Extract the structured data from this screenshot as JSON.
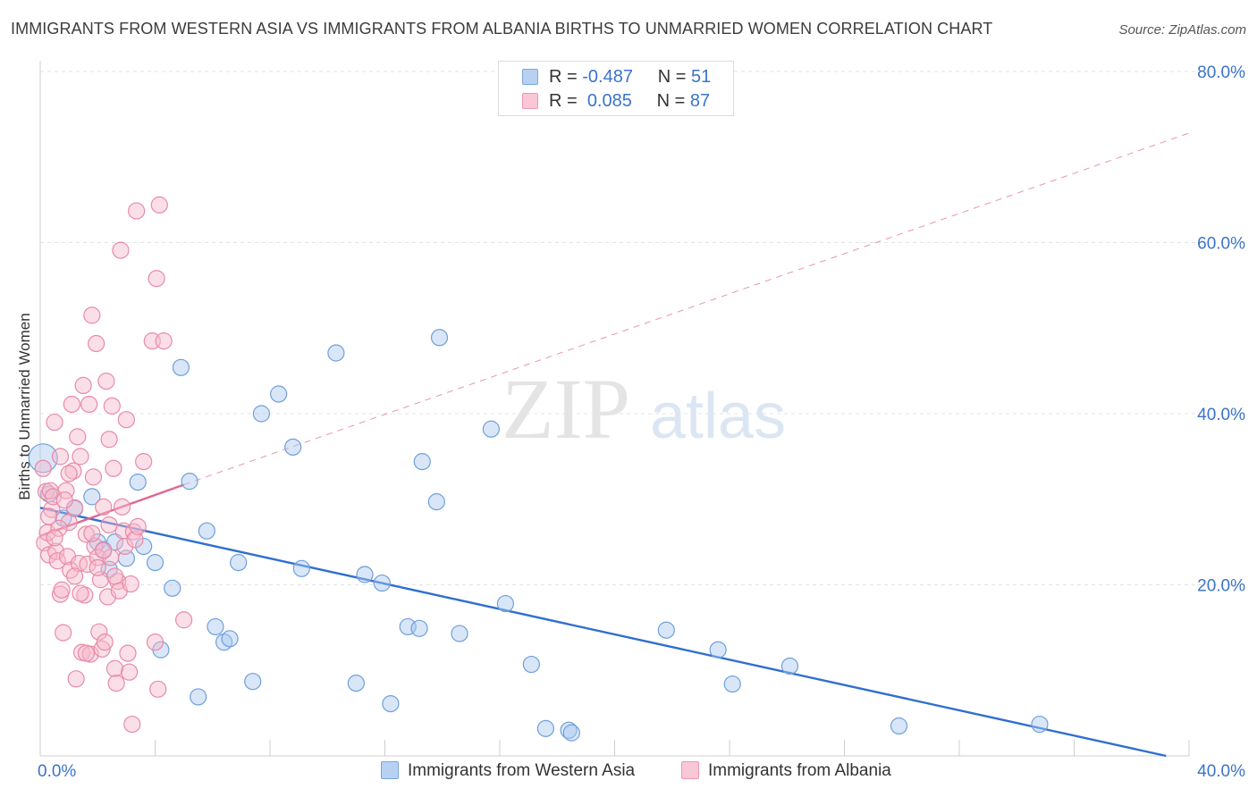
{
  "title": "IMMIGRANTS FROM WESTERN ASIA VS IMMIGRANTS FROM ALBANIA BIRTHS TO UNMARRIED WOMEN CORRELATION CHART",
  "source": "Source: ZipAtlas.com",
  "legend": {
    "series1": {
      "r_label": "R =",
      "r_value": "-0.487",
      "n_label": "N =",
      "n_value": "51"
    },
    "series2": {
      "r_label": "R =",
      "r_value": "0.085",
      "n_label": "N =",
      "n_value": "87"
    }
  },
  "colors": {
    "blue_fill": "#a9c8f0",
    "blue_stroke": "#6f9fdb",
    "blue_line": "#2f6fd0",
    "pink_fill": "#f6b8cb",
    "pink_stroke": "#e88aa6",
    "pink_line": "#e0668f",
    "grid": "#e3e3e3",
    "tick_label": "#3a74c9"
  },
  "chart_data": {
    "type": "scatter",
    "title": "IMMIGRANTS FROM WESTERN ASIA VS IMMIGRANTS FROM ALBANIA BIRTHS TO UNMARRIED WOMEN CORRELATION CHART",
    "xlabel": "",
    "ylabel": "Births to Unmarried Women",
    "xlim": [
      0,
      40
    ],
    "ylim": [
      0,
      80
    ],
    "x_tick_labels": [
      "0.0%",
      "40.0%"
    ],
    "y_ticks": [
      20,
      40,
      60,
      80
    ],
    "y_tick_labels": [
      "20.0%",
      "40.0%",
      "60.0%",
      "80.0%"
    ],
    "grid": true,
    "watermark": {
      "zip": "ZIP",
      "atlas": "atlas"
    },
    "series": [
      {
        "name": "Immigrants from Western Asia",
        "color": "blue",
        "points": [
          [
            0.1,
            34.8
          ],
          [
            0.3,
            30.6
          ],
          [
            0.8,
            27.8
          ],
          [
            1.2,
            28.9
          ],
          [
            1.8,
            30.3
          ],
          [
            2.0,
            25.0
          ],
          [
            2.2,
            24.1
          ],
          [
            2.4,
            21.8
          ],
          [
            2.6,
            25.0
          ],
          [
            3.0,
            23.1
          ],
          [
            3.4,
            32.0
          ],
          [
            3.6,
            24.5
          ],
          [
            4.0,
            22.6
          ],
          [
            4.2,
            12.4
          ],
          [
            4.6,
            19.6
          ],
          [
            4.9,
            45.4
          ],
          [
            5.2,
            32.1
          ],
          [
            5.5,
            6.9
          ],
          [
            5.8,
            26.3
          ],
          [
            6.1,
            15.1
          ],
          [
            6.4,
            13.3
          ],
          [
            6.6,
            13.7
          ],
          [
            6.9,
            22.6
          ],
          [
            7.4,
            8.7
          ],
          [
            7.7,
            40.0
          ],
          [
            8.3,
            42.3
          ],
          [
            8.8,
            36.1
          ],
          [
            9.1,
            21.9
          ],
          [
            10.3,
            47.1
          ],
          [
            11.0,
            8.5
          ],
          [
            11.3,
            21.2
          ],
          [
            11.9,
            20.2
          ],
          [
            12.2,
            6.1
          ],
          [
            12.8,
            15.1
          ],
          [
            13.2,
            14.9
          ],
          [
            13.3,
            34.4
          ],
          [
            13.8,
            29.7
          ],
          [
            13.9,
            48.9
          ],
          [
            14.6,
            14.3
          ],
          [
            15.7,
            38.2
          ],
          [
            16.2,
            17.8
          ],
          [
            17.1,
            10.7
          ],
          [
            17.6,
            3.2
          ],
          [
            18.4,
            3.0
          ],
          [
            18.5,
            2.7
          ],
          [
            21.8,
            14.7
          ],
          [
            23.6,
            12.4
          ],
          [
            24.1,
            8.4
          ],
          [
            26.1,
            10.5
          ],
          [
            29.9,
            3.5
          ],
          [
            34.8,
            3.7
          ]
        ]
      },
      {
        "name": "Immigrants from Albania",
        "color": "pink",
        "points": [
          [
            0.1,
            33.6
          ],
          [
            0.15,
            24.9
          ],
          [
            0.2,
            30.9
          ],
          [
            0.25,
            26.1
          ],
          [
            0.3,
            23.5
          ],
          [
            0.35,
            31.0
          ],
          [
            0.4,
            28.8
          ],
          [
            0.5,
            39.0
          ],
          [
            0.55,
            23.9
          ],
          [
            0.6,
            22.8
          ],
          [
            0.7,
            18.9
          ],
          [
            0.75,
            19.4
          ],
          [
            0.8,
            14.4
          ],
          [
            0.9,
            31.0
          ],
          [
            0.95,
            23.3
          ],
          [
            1.0,
            27.3
          ],
          [
            1.05,
            21.7
          ],
          [
            1.1,
            41.1
          ],
          [
            1.15,
            33.3
          ],
          [
            1.2,
            29.0
          ],
          [
            1.25,
            9.0
          ],
          [
            1.3,
            37.3
          ],
          [
            1.35,
            22.5
          ],
          [
            1.4,
            35.0
          ],
          [
            1.45,
            12.1
          ],
          [
            1.5,
            43.3
          ],
          [
            1.55,
            18.8
          ],
          [
            1.6,
            25.9
          ],
          [
            1.65,
            22.4
          ],
          [
            1.7,
            41.1
          ],
          [
            1.75,
            11.9
          ],
          [
            1.8,
            51.5
          ],
          [
            1.85,
            32.6
          ],
          [
            1.9,
            24.5
          ],
          [
            1.95,
            48.2
          ],
          [
            2.0,
            23.2
          ],
          [
            2.05,
            14.5
          ],
          [
            2.1,
            20.6
          ],
          [
            2.15,
            12.5
          ],
          [
            2.2,
            29.1
          ],
          [
            2.25,
            13.3
          ],
          [
            2.3,
            43.8
          ],
          [
            2.35,
            18.6
          ],
          [
            2.4,
            37.0
          ],
          [
            2.45,
            23.2
          ],
          [
            2.5,
            40.9
          ],
          [
            2.55,
            33.6
          ],
          [
            2.6,
            10.2
          ],
          [
            2.65,
            8.5
          ],
          [
            2.7,
            20.4
          ],
          [
            2.75,
            19.3
          ],
          [
            2.8,
            59.1
          ],
          [
            2.85,
            29.1
          ],
          [
            2.9,
            26.3
          ],
          [
            2.95,
            24.5
          ],
          [
            3.0,
            39.3
          ],
          [
            3.05,
            12.0
          ],
          [
            3.1,
            9.8
          ],
          [
            3.15,
            20.1
          ],
          [
            3.2,
            3.7
          ],
          [
            3.25,
            26.2
          ],
          [
            3.3,
            25.3
          ],
          [
            3.35,
            63.7
          ],
          [
            3.4,
            26.8
          ],
          [
            3.6,
            34.4
          ],
          [
            3.9,
            48.5
          ],
          [
            4.0,
            13.3
          ],
          [
            4.05,
            55.8
          ],
          [
            4.1,
            7.8
          ],
          [
            4.15,
            64.4
          ],
          [
            4.3,
            48.5
          ],
          [
            5.0,
            15.9
          ],
          [
            0.45,
            30.3
          ],
          [
            0.65,
            26.6
          ],
          [
            0.85,
            29.9
          ],
          [
            1.0,
            33.0
          ],
          [
            1.2,
            21.0
          ],
          [
            1.4,
            19.0
          ],
          [
            1.6,
            12.0
          ],
          [
            1.8,
            26.0
          ],
          [
            2.0,
            22.0
          ],
          [
            2.2,
            24.0
          ],
          [
            2.4,
            27.0
          ],
          [
            2.6,
            21.0
          ],
          [
            0.3,
            28.0
          ],
          [
            0.5,
            25.5
          ],
          [
            0.7,
            35.0
          ]
        ]
      }
    ],
    "trend_lines": [
      {
        "series": "Immigrants from Western Asia",
        "x": [
          0,
          39.2
        ],
        "y": [
          29.0,
          0.0
        ],
        "style": "solid"
      },
      {
        "series": "Immigrants from Albania",
        "x": [
          0,
          5.0
        ],
        "y": [
          25.7,
          31.7
        ],
        "style": "solid"
      },
      {
        "series": "Immigrants from Albania",
        "x": [
          5.0,
          40.0
        ],
        "y": [
          31.7,
          72.8
        ],
        "style": "dashed"
      }
    ]
  }
}
